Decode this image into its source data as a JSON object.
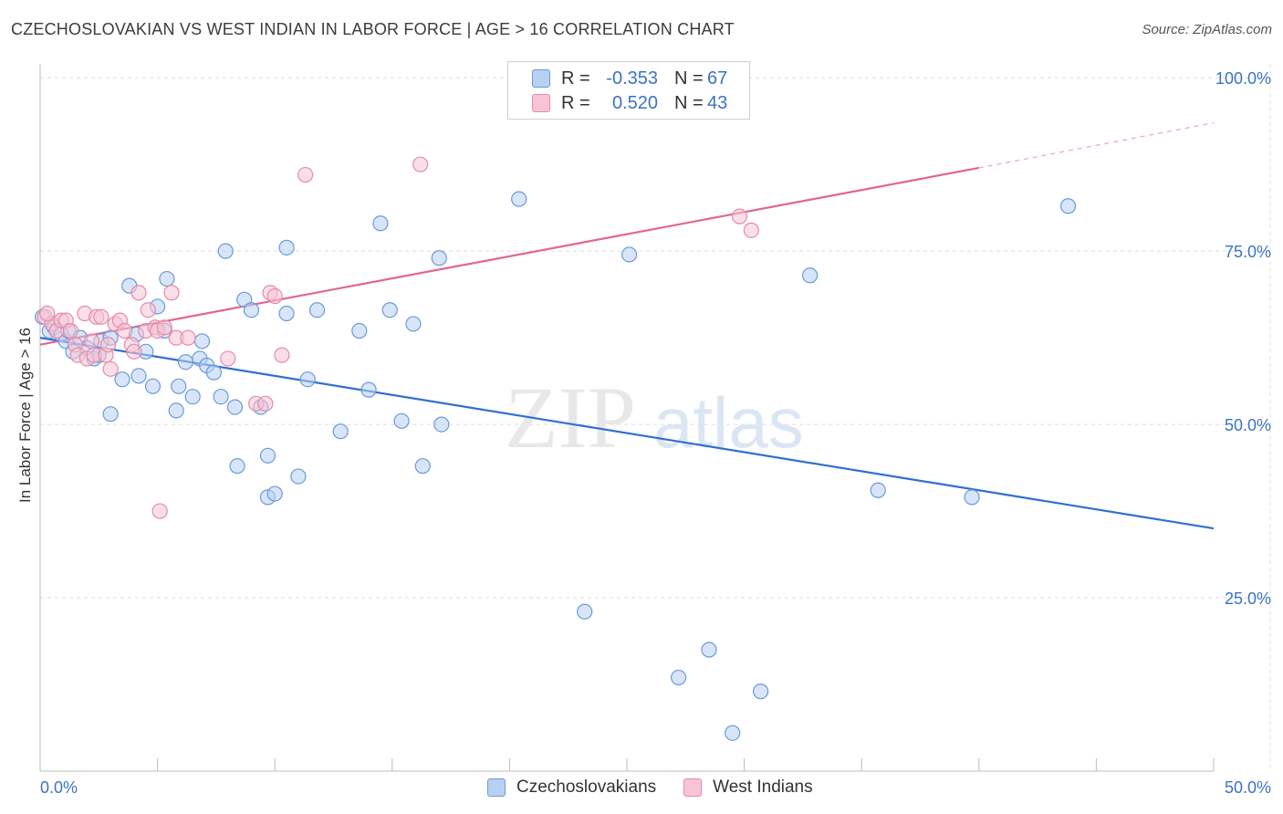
{
  "header": {
    "title": "CZECHOSLOVAKIAN VS WEST INDIAN IN LABOR FORCE | AGE > 16 CORRELATION CHART",
    "source": "Source: ZipAtlas.com"
  },
  "watermark": {
    "zip": "ZIP",
    "atlas": "atlas"
  },
  "legend": {
    "rows": [
      {
        "r_label": "R =",
        "r_value": "-0.353",
        "n_label": "N =",
        "n_value": "67"
      },
      {
        "r_label": "R =",
        "r_value": "0.520",
        "n_label": "N =",
        "n_value": "43"
      }
    ],
    "bottom": [
      "Czechoslovakians",
      "West Indians"
    ]
  },
  "colors": {
    "blue_fill": "#b8d0f2",
    "blue_stroke": "#6a9ad8",
    "blue_line": "#2f6fd0",
    "pink_fill": "#f8c4d4",
    "pink_stroke": "#e88aa8",
    "pink_line": "#e0678f",
    "axis_text": "#3b72c8",
    "grid": "#dddddd"
  },
  "chart_data": {
    "type": "scatter",
    "title": "CZECHOSLOVAKIAN VS WEST INDIAN IN LABOR FORCE | AGE > 16 CORRELATION CHART",
    "xlabel": "",
    "ylabel": "In Labor Force | Age > 16",
    "xlim": [
      0,
      50
    ],
    "ylim": [
      0,
      102
    ],
    "x_tick_labels": [
      "0.0%",
      "50.0%"
    ],
    "y_ticks": [
      25,
      50,
      75,
      100
    ],
    "y_tick_labels": [
      "25.0%",
      "50.0%",
      "75.0%",
      "100.0%"
    ],
    "grid": true,
    "series": [
      {
        "name": "Czechoslovakians",
        "color": "#b8d0f2",
        "points": [
          [
            0.1,
            65.5
          ],
          [
            0.4,
            63.5
          ],
          [
            0.6,
            64.0
          ],
          [
            0.9,
            63.0
          ],
          [
            1.1,
            62.0
          ],
          [
            1.4,
            60.5
          ],
          [
            1.7,
            62.5
          ],
          [
            2.0,
            61.0
          ],
          [
            2.3,
            59.5
          ],
          [
            2.6,
            62.0
          ],
          [
            3.0,
            62.5
          ],
          [
            3.0,
            51.5
          ],
          [
            3.5,
            56.5
          ],
          [
            3.8,
            70.0
          ],
          [
            4.1,
            63.0
          ],
          [
            4.2,
            57.0
          ],
          [
            4.5,
            60.5
          ],
          [
            4.8,
            55.5
          ],
          [
            5.0,
            67.0
          ],
          [
            5.3,
            63.5
          ],
          [
            5.4,
            71.0
          ],
          [
            5.8,
            52.0
          ],
          [
            5.9,
            55.5
          ],
          [
            6.2,
            59.0
          ],
          [
            6.5,
            54.0
          ],
          [
            6.8,
            59.5
          ],
          [
            6.9,
            62.0
          ],
          [
            7.1,
            58.5
          ],
          [
            7.4,
            57.5
          ],
          [
            7.7,
            54.0
          ],
          [
            7.9,
            75.0
          ],
          [
            8.3,
            52.5
          ],
          [
            8.4,
            44.0
          ],
          [
            8.7,
            68.0
          ],
          [
            9.0,
            66.5
          ],
          [
            9.4,
            52.5
          ],
          [
            9.7,
            45.5
          ],
          [
            9.7,
            39.5
          ],
          [
            10.0,
            40.0
          ],
          [
            10.5,
            66.0
          ],
          [
            10.5,
            75.5
          ],
          [
            11.0,
            42.5
          ],
          [
            11.4,
            56.5
          ],
          [
            11.8,
            66.5
          ],
          [
            12.8,
            49.0
          ],
          [
            13.6,
            63.5
          ],
          [
            14.0,
            55.0
          ],
          [
            14.5,
            79.0
          ],
          [
            14.9,
            66.5
          ],
          [
            15.4,
            50.5
          ],
          [
            15.9,
            64.5
          ],
          [
            16.3,
            44.0
          ],
          [
            17.0,
            74.0
          ],
          [
            17.1,
            50.0
          ],
          [
            20.4,
            82.5
          ],
          [
            23.2,
            23.0
          ],
          [
            25.1,
            74.5
          ],
          [
            27.2,
            13.5
          ],
          [
            28.5,
            17.5
          ],
          [
            29.5,
            5.5
          ],
          [
            30.7,
            11.5
          ],
          [
            32.8,
            71.5
          ],
          [
            35.7,
            40.5
          ],
          [
            39.7,
            39.5
          ],
          [
            43.8,
            81.5
          ],
          [
            1.2,
            63.5
          ],
          [
            2.5,
            60.0
          ]
        ]
      },
      {
        "name": "West Indians",
        "color": "#f8c4d4",
        "points": [
          [
            0.2,
            65.5
          ],
          [
            0.5,
            64.5
          ],
          [
            0.7,
            63.5
          ],
          [
            0.9,
            65.0
          ],
          [
            1.1,
            65.0
          ],
          [
            1.3,
            63.5
          ],
          [
            1.5,
            61.5
          ],
          [
            1.6,
            60.0
          ],
          [
            1.9,
            66.0
          ],
          [
            2.0,
            59.5
          ],
          [
            2.2,
            62.0
          ],
          [
            2.3,
            60.0
          ],
          [
            2.4,
            65.5
          ],
          [
            2.6,
            65.5
          ],
          [
            2.8,
            60.0
          ],
          [
            2.9,
            61.5
          ],
          [
            3.0,
            58.0
          ],
          [
            3.2,
            64.5
          ],
          [
            3.4,
            65.0
          ],
          [
            3.6,
            63.5
          ],
          [
            3.9,
            61.5
          ],
          [
            4.0,
            60.5
          ],
          [
            4.2,
            69.0
          ],
          [
            4.5,
            63.5
          ],
          [
            4.6,
            66.5
          ],
          [
            4.9,
            64.0
          ],
          [
            5.0,
            63.5
          ],
          [
            5.1,
            37.5
          ],
          [
            5.3,
            64.0
          ],
          [
            5.6,
            69.0
          ],
          [
            5.8,
            62.5
          ],
          [
            6.3,
            62.5
          ],
          [
            8.0,
            59.5
          ],
          [
            9.2,
            53.0
          ],
          [
            9.6,
            53.0
          ],
          [
            9.8,
            69.0
          ],
          [
            10.0,
            68.5
          ],
          [
            10.3,
            60.0
          ],
          [
            11.3,
            86.0
          ],
          [
            16.2,
            87.5
          ],
          [
            29.8,
            80.0
          ],
          [
            30.3,
            78.0
          ],
          [
            0.3,
            66.0
          ]
        ]
      }
    ],
    "trendlines": [
      {
        "series": "Czechoslovakians",
        "from": [
          0,
          62.5
        ],
        "to": [
          50,
          35
        ]
      },
      {
        "series": "West Indians",
        "from": [
          0,
          61.5
        ],
        "to": [
          40,
          87
        ],
        "dashed_to": [
          50,
          93.5
        ]
      }
    ]
  }
}
